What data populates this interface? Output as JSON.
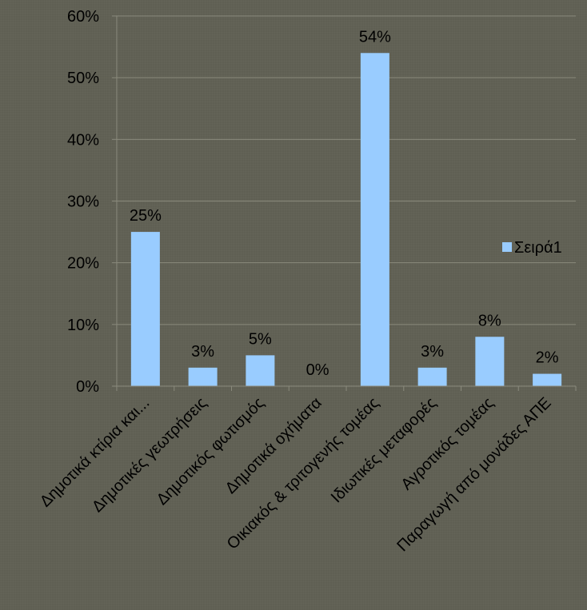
{
  "chart_data": {
    "type": "bar",
    "categories": [
      "Δημοτικά κτίρια και...",
      "Δημοτικές γεωτρήσεις",
      "Δημοτικός φωτισμός",
      "Δημοτικά οχήματα",
      "Οικιακός & τριτογενής τομέας",
      "Ιδιωτικές μεταφορές",
      "Αγροτικός τομέας",
      "Παραγωγή από μονάδες ΑΠΕ"
    ],
    "series": [
      {
        "name": "Σειρά1",
        "values": [
          25,
          3,
          5,
          0,
          54,
          3,
          8,
          2
        ],
        "data_labels": [
          "25%",
          "3%",
          "5%",
          "0%",
          "54%",
          "3%",
          "8%",
          "2%"
        ],
        "color": "#99ccff"
      }
    ],
    "ylim": [
      0,
      60
    ],
    "yticks": [
      {
        "value": 0,
        "label": "0%"
      },
      {
        "value": 10,
        "label": "10%"
      },
      {
        "value": 20,
        "label": "20%"
      },
      {
        "value": 30,
        "label": "30%"
      },
      {
        "value": 40,
        "label": "40%"
      },
      {
        "value": 50,
        "label": "50%"
      },
      {
        "value": 60,
        "label": "60%"
      }
    ],
    "grid": true,
    "legend": "right",
    "title": "",
    "xlabel": "",
    "ylabel": ""
  }
}
